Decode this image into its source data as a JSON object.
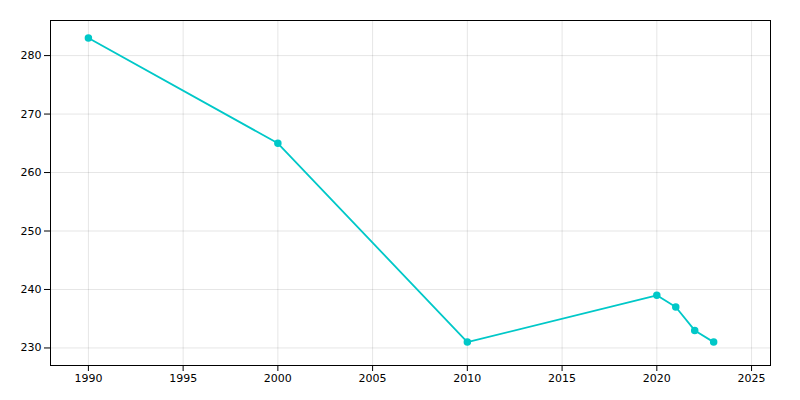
{
  "chart_data": {
    "type": "line",
    "x": [
      1990,
      2000,
      2010,
      2020,
      2021,
      2022,
      2023
    ],
    "values": [
      283,
      265,
      231,
      239,
      237,
      233,
      231
    ],
    "color": "#00C8C8",
    "marker": "circle",
    "xlim": [
      1988,
      2026
    ],
    "ylim": [
      227,
      286
    ],
    "xticks": [
      1990,
      1995,
      2000,
      2005,
      2010,
      2015,
      2020,
      2025
    ],
    "yticks": [
      230,
      240,
      250,
      260,
      270,
      280
    ],
    "grid": true
  }
}
